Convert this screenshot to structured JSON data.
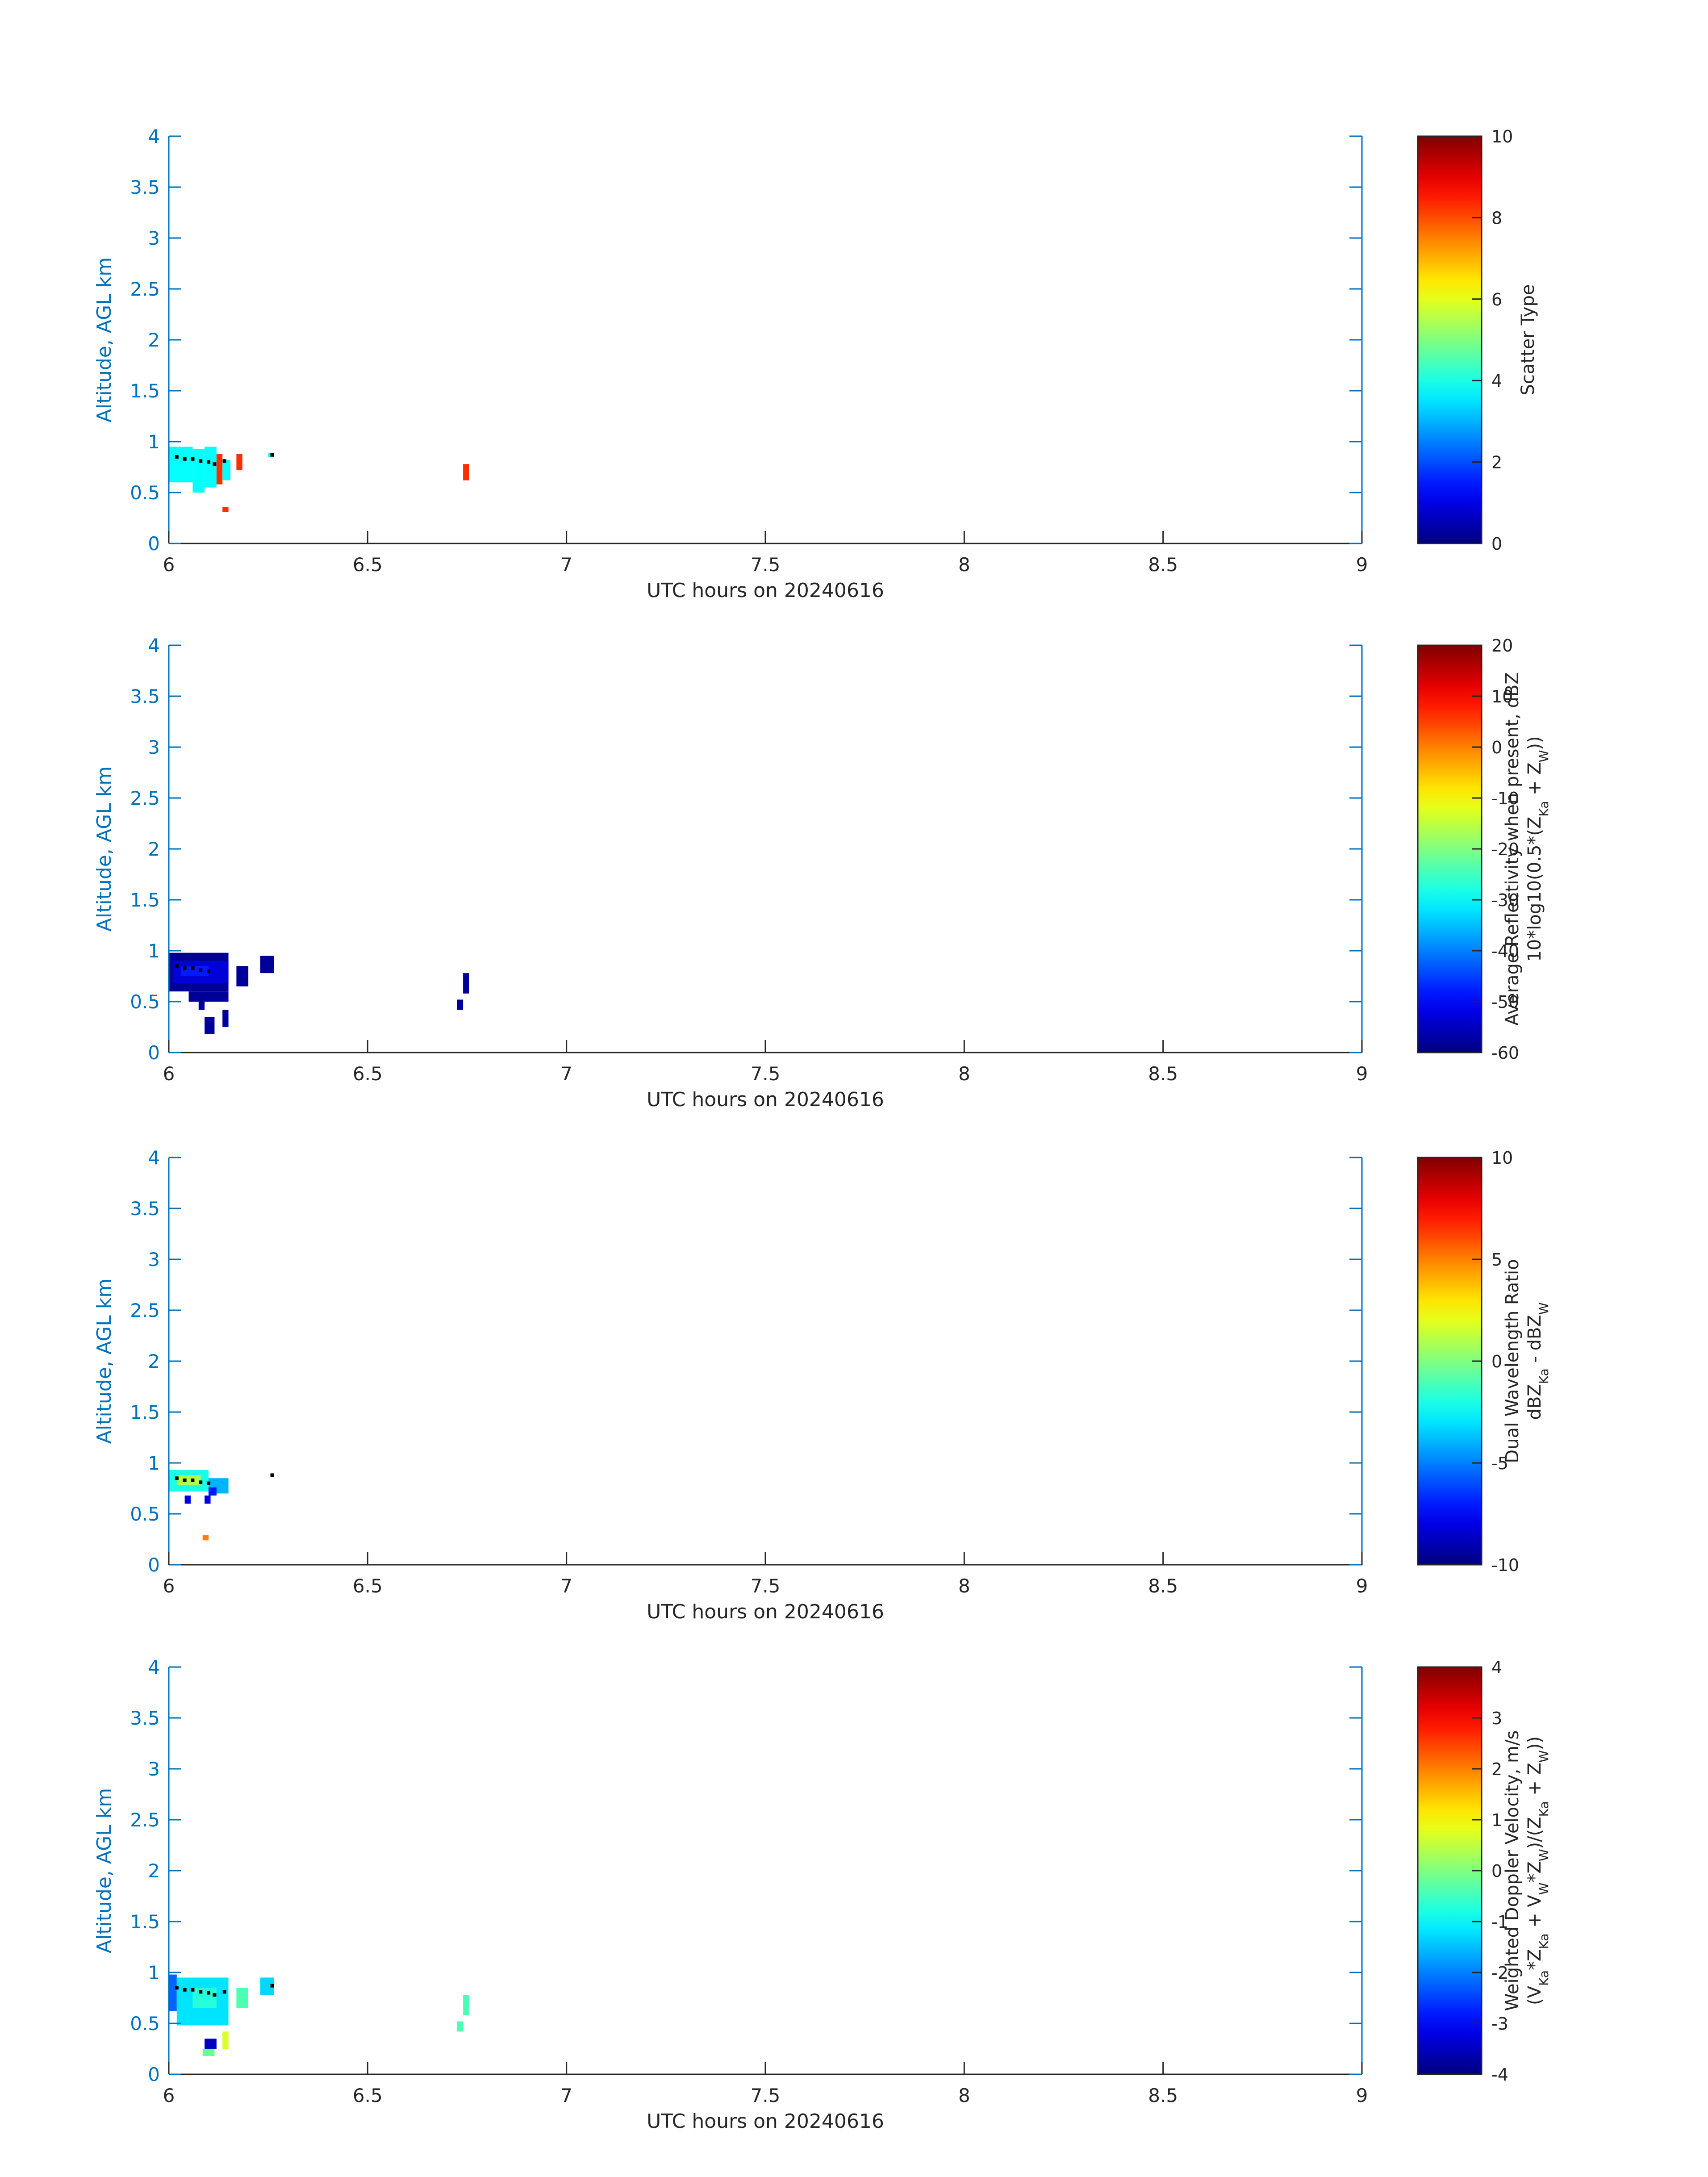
{
  "chart_data": [
    {
      "type": "heatmap",
      "xlabel": "UTC hours on 20240616",
      "ylabel": "Altitude, AGL km",
      "xlim": [
        6,
        9
      ],
      "ylim": [
        0,
        4
      ],
      "xticks": [
        "6",
        "6.5",
        "7",
        "7.5",
        "8",
        "8.5",
        "9"
      ],
      "yticks": [
        "0",
        "0.5",
        "1",
        "1.5",
        "2",
        "2.5",
        "3",
        "3.5",
        "4"
      ],
      "colorbar": {
        "label_lines": [
          {
            "text": "Scatter Type"
          }
        ],
        "range": [
          0,
          10
        ],
        "ticks": [
          "0",
          "2",
          "4",
          "6",
          "8",
          "10"
        ],
        "colormap": "jet"
      },
      "cells": [
        {
          "x": [
            6.0,
            6.06
          ],
          "y": [
            0.6,
            0.95
          ],
          "v": 3.8
        },
        {
          "x": [
            6.06,
            6.09
          ],
          "y": [
            0.5,
            0.93
          ],
          "v": 3.8
        },
        {
          "x": [
            6.09,
            6.12
          ],
          "y": [
            0.55,
            0.95
          ],
          "v": 3.8
        },
        {
          "x": [
            6.12,
            6.135
          ],
          "y": [
            0.58,
            0.88
          ],
          "v": 8.3
        },
        {
          "x": [
            6.135,
            6.155
          ],
          "y": [
            0.62,
            0.82
          ],
          "v": 3.8
        },
        {
          "x": [
            6.17,
            6.185
          ],
          "y": [
            0.72,
            0.88
          ],
          "v": 8.3
        },
        {
          "x": [
            6.135,
            6.15
          ],
          "y": [
            0.31,
            0.36
          ],
          "v": 8.3
        },
        {
          "x": [
            6.25,
            6.265
          ],
          "y": [
            0.85,
            0.89
          ],
          "v": 3.8
        },
        {
          "x": [
            6.74,
            6.755
          ],
          "y": [
            0.62,
            0.78
          ],
          "v": 8.3
        }
      ],
      "markers": {
        "x": [
          6.02,
          6.04,
          6.06,
          6.08,
          6.1,
          6.115,
          6.14,
          6.26
        ],
        "y": [
          0.85,
          0.83,
          0.83,
          0.81,
          0.8,
          0.78,
          0.81,
          0.87
        ]
      }
    },
    {
      "type": "heatmap",
      "xlabel": "UTC hours on 20240616",
      "ylabel": "Altitude, AGL km",
      "xlim": [
        6,
        9
      ],
      "ylim": [
        0,
        4
      ],
      "xticks": [
        "6",
        "6.5",
        "7",
        "7.5",
        "8",
        "8.5",
        "9"
      ],
      "yticks": [
        "0",
        "0.5",
        "1",
        "1.5",
        "2",
        "2.5",
        "3",
        "3.5",
        "4"
      ],
      "colorbar": {
        "label_lines": [
          {
            "text": "Average Reflectivity when present, dBZ"
          },
          {
            "text": "10*log10(0.5*(Z",
            "sub1": "Ka",
            "mid": " + Z",
            "sub2": "W",
            "end": "))"
          }
        ],
        "range": [
          -60,
          20
        ],
        "ticks": [
          "-60",
          "-50",
          "-40",
          "-30",
          "-20",
          "-10",
          "0",
          "10",
          "20"
        ],
        "colormap": "jet"
      },
      "cells": [
        {
          "x": [
            6.0,
            6.15
          ],
          "y": [
            0.6,
            0.98
          ],
          "v": -58
        },
        {
          "x": [
            6.01,
            6.15
          ],
          "y": [
            0.68,
            0.9
          ],
          "v": -53
        },
        {
          "x": [
            6.03,
            6.1
          ],
          "y": [
            0.75,
            0.85
          ],
          "v": -48
        },
        {
          "x": [
            6.05,
            6.15
          ],
          "y": [
            0.5,
            0.6
          ],
          "v": -58
        },
        {
          "x": [
            6.075,
            6.09
          ],
          "y": [
            0.42,
            0.5
          ],
          "v": -58
        },
        {
          "x": [
            6.09,
            6.115
          ],
          "y": [
            0.18,
            0.35
          ],
          "v": -58
        },
        {
          "x": [
            6.135,
            6.15
          ],
          "y": [
            0.25,
            0.42
          ],
          "v": -58
        },
        {
          "x": [
            6.17,
            6.2
          ],
          "y": [
            0.65,
            0.85
          ],
          "v": -58
        },
        {
          "x": [
            6.23,
            6.265
          ],
          "y": [
            0.78,
            0.95
          ],
          "v": -58
        },
        {
          "x": [
            6.725,
            6.74
          ],
          "y": [
            0.42,
            0.52
          ],
          "v": -58
        },
        {
          "x": [
            6.74,
            6.755
          ],
          "y": [
            0.58,
            0.78
          ],
          "v": -58
        }
      ],
      "markers": {
        "x": [
          6.02,
          6.04,
          6.06,
          6.08,
          6.1
        ],
        "y": [
          0.85,
          0.83,
          0.83,
          0.81,
          0.8
        ]
      }
    },
    {
      "type": "heatmap",
      "xlabel": "UTC hours on 20240616",
      "ylabel": "Altitude, AGL km",
      "xlim": [
        6,
        9
      ],
      "ylim": [
        0,
        4
      ],
      "xticks": [
        "6",
        "6.5",
        "7",
        "7.5",
        "8",
        "8.5",
        "9"
      ],
      "yticks": [
        "0",
        "0.5",
        "1",
        "1.5",
        "2",
        "2.5",
        "3",
        "3.5",
        "4"
      ],
      "colorbar": {
        "label_lines": [
          {
            "text": "Dual Wavelength Ratio"
          },
          {
            "text": "dBZ",
            "sub1": "Ka",
            "mid": " - dBZ",
            "sub2": "W",
            "end": ""
          }
        ],
        "range": [
          -10,
          10
        ],
        "ticks": [
          "-10",
          "-5",
          "0",
          "5",
          "10"
        ],
        "colormap": "jet"
      },
      "cells": [
        {
          "x": [
            6.0,
            6.1
          ],
          "y": [
            0.72,
            0.93
          ],
          "v": -2
        },
        {
          "x": [
            6.02,
            6.08
          ],
          "y": [
            0.78,
            0.88
          ],
          "v": 1
        },
        {
          "x": [
            6.1,
            6.15
          ],
          "y": [
            0.7,
            0.85
          ],
          "v": -4
        },
        {
          "x": [
            6.04,
            6.055
          ],
          "y": [
            0.6,
            0.68
          ],
          "v": -8
        },
        {
          "x": [
            6.09,
            6.105
          ],
          "y": [
            0.6,
            0.68
          ],
          "v": -8
        },
        {
          "x": [
            6.1,
            6.12
          ],
          "y": [
            0.68,
            0.76
          ],
          "v": -7
        },
        {
          "x": [
            6.085,
            6.1
          ],
          "y": [
            0.24,
            0.29
          ],
          "v": 5
        }
      ],
      "markers": {
        "x": [
          6.02,
          6.04,
          6.06,
          6.08,
          6.1,
          6.26
        ],
        "y": [
          0.85,
          0.83,
          0.83,
          0.81,
          0.8,
          0.88
        ]
      }
    },
    {
      "type": "heatmap",
      "xlabel": "UTC hours on 20240616",
      "ylabel": "Altitude, AGL km",
      "xlim": [
        6,
        9
      ],
      "ylim": [
        0,
        4
      ],
      "xticks": [
        "6",
        "6.5",
        "7",
        "7.5",
        "8",
        "8.5",
        "9"
      ],
      "yticks": [
        "0",
        "0.5",
        "1",
        "1.5",
        "2",
        "2.5",
        "3",
        "3.5",
        "4"
      ],
      "colorbar": {
        "label_lines": [
          {
            "text": "Weighted Doppler Velocity, m/s"
          },
          {
            "text": "(V",
            "sub1": "Ka",
            "mid": "*Z",
            "sub2": "Ka",
            "end": " + V",
            "sub3": "W",
            "end2": "*Z",
            "sub4": "W",
            "end3": ")/(Z",
            "sub5": "Ka",
            "end4": " + Z",
            "sub6": "W",
            "end5": "))"
          }
        ],
        "range": [
          -4,
          4
        ],
        "ticks": [
          "-4",
          "-3",
          "-2",
          "-1",
          "0",
          "1",
          "2",
          "3",
          "4"
        ],
        "colormap": "jet"
      },
      "cells": [
        {
          "x": [
            6.0,
            6.02
          ],
          "y": [
            0.62,
            0.98
          ],
          "v": -2.2
        },
        {
          "x": [
            6.02,
            6.15
          ],
          "y": [
            0.48,
            0.95
          ],
          "v": -1.2
        },
        {
          "x": [
            6.06,
            6.12
          ],
          "y": [
            0.65,
            0.85
          ],
          "v": -0.7
        },
        {
          "x": [
            6.09,
            6.12
          ],
          "y": [
            0.25,
            0.35
          ],
          "v": -3.5
        },
        {
          "x": [
            6.085,
            6.115
          ],
          "y": [
            0.18,
            0.25
          ],
          "v": -0.2
        },
        {
          "x": [
            6.135,
            6.15
          ],
          "y": [
            0.25,
            0.42
          ],
          "v": 0.7
        },
        {
          "x": [
            6.17,
            6.2
          ],
          "y": [
            0.65,
            0.85
          ],
          "v": -0.4
        },
        {
          "x": [
            6.23,
            6.265
          ],
          "y": [
            0.78,
            0.95
          ],
          "v": -1.3
        },
        {
          "x": [
            6.725,
            6.74
          ],
          "y": [
            0.42,
            0.52
          ],
          "v": -0.4
        },
        {
          "x": [
            6.74,
            6.755
          ],
          "y": [
            0.58,
            0.78
          ],
          "v": -0.4
        }
      ],
      "markers": {
        "x": [
          6.02,
          6.04,
          6.06,
          6.08,
          6.1,
          6.115,
          6.14,
          6.26
        ],
        "y": [
          0.85,
          0.83,
          0.83,
          0.81,
          0.8,
          0.78,
          0.81,
          0.87
        ]
      }
    }
  ]
}
